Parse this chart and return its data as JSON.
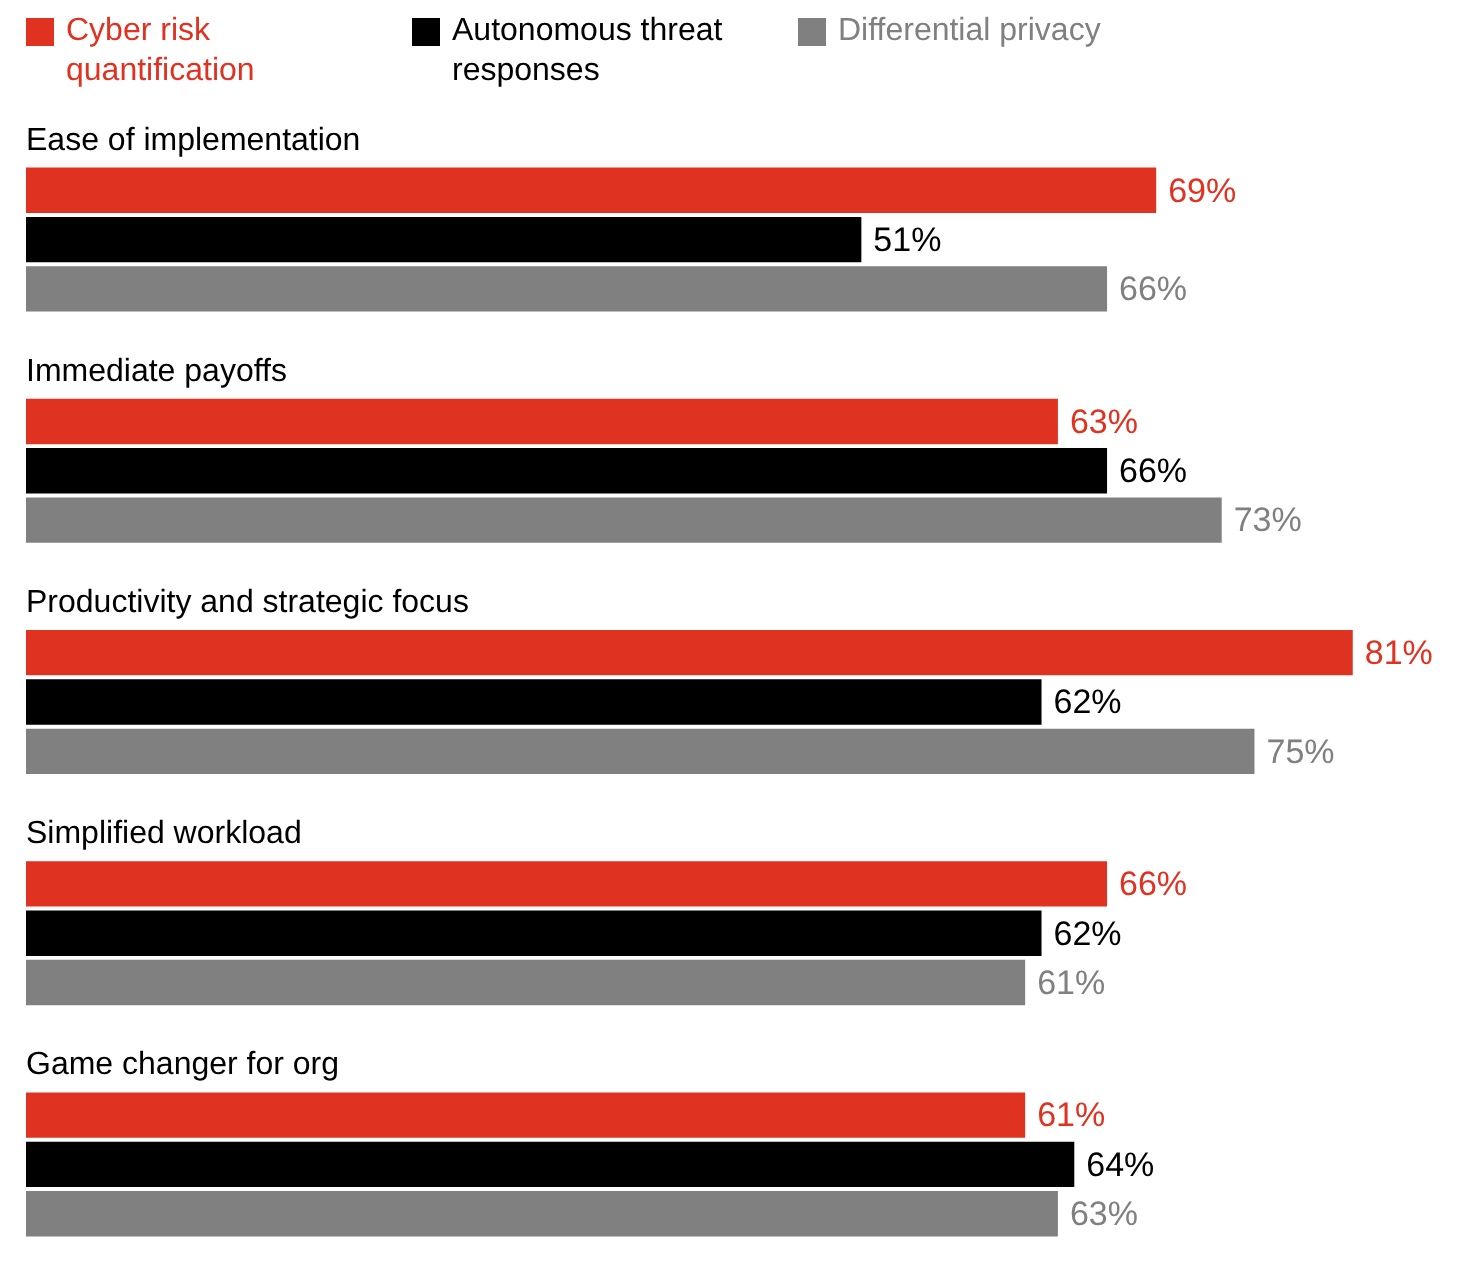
{
  "chart_data": {
    "type": "bar",
    "orientation": "horizontal",
    "categories": [
      "Ease of implementation",
      "Immediate payoffs",
      "Productivity and strategic focus",
      "Simplified workload",
      "Game changer for org"
    ],
    "series": [
      {
        "name": "Cyber risk quantification",
        "color": "#e03220",
        "values": [
          69,
          63,
          81,
          66,
          61
        ],
        "value_labels": [
          "69%",
          "63%",
          "81%",
          "66%",
          "61%"
        ]
      },
      {
        "name": "Autonomous threat responses",
        "color": "#000000",
        "values": [
          51,
          66,
          62,
          62,
          64
        ],
        "value_labels": [
          "51%",
          "66%",
          "62%",
          "62%",
          "64%"
        ]
      },
      {
        "name": "Differential privacy",
        "color": "#808080",
        "values": [
          66,
          73,
          75,
          61,
          63
        ],
        "value_labels": [
          "66%",
          "73%",
          "75%",
          "61%",
          "63%"
        ]
      }
    ],
    "legend": "top left"
  }
}
